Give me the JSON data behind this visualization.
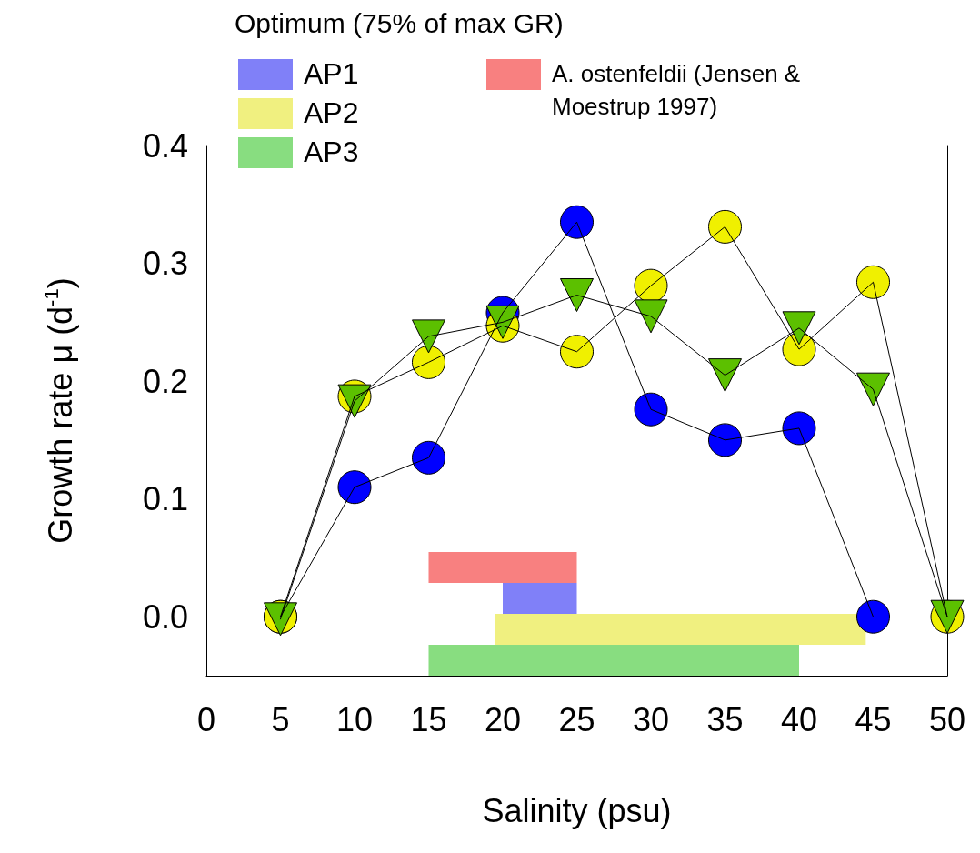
{
  "chart_data": {
    "type": "line",
    "xlabel": "Salinity (psu)",
    "ylabel": "Growth rate μ (d$^{-1}$)",
    "legend_title": "Optimum (75% of max GR)",
    "legend": "top left",
    "grid": false,
    "x": [
      5,
      10,
      15,
      20,
      25,
      30,
      35,
      40,
      45,
      50
    ],
    "xlim": [
      0,
      50
    ],
    "xticks": [
      0,
      5,
      10,
      15,
      20,
      25,
      30,
      35,
      40,
      45,
      50
    ],
    "ylim": [
      -0.05,
      0.4
    ],
    "yticks": [
      {
        "value": 0,
        "label": "0.0"
      },
      {
        "value": 0.1,
        "label": "0.1"
      },
      {
        "value": 0.2,
        "label": "0.2"
      },
      {
        "value": 0.3,
        "label": "0.3"
      },
      {
        "value": 0.4,
        "label": "0.4"
      }
    ],
    "series": [
      {
        "color": "#0000ff",
        "marker": "circle",
        "values": [
          0,
          0.11,
          0.135,
          0.258,
          0.335,
          0.176,
          0.15,
          0.16,
          0,
          null
        ]
      },
      {
        "color": "#f0f000",
        "marker": "circle",
        "values": [
          0,
          0.187,
          0.216,
          0.247,
          0.225,
          0.281,
          0.331,
          0.227,
          0.284,
          0
        ]
      },
      {
        "color": "#5cc000",
        "marker": "triangle",
        "values": [
          -0.002,
          0.183,
          0.238,
          0.25,
          0.273,
          0.255,
          0.205,
          0.245,
          0.193,
          0
        ]
      }
    ],
    "bands": [
      {
        "axis": "x",
        "from": 15,
        "to": 25,
        "label": "A. ostenfeldii (Jensen & Moestrup 1997)",
        "color": "#f88080"
      },
      {
        "axis": "x",
        "from": 20,
        "to": 25,
        "label": "AP1",
        "color": "#8080f8"
      },
      {
        "axis": "x",
        "from": 19.5,
        "to": 44.5,
        "label": "AP2",
        "color": "#f0f080"
      },
      {
        "axis": "x",
        "from": 15,
        "to": 40,
        "label": "AP3",
        "color": "#88dd80"
      }
    ]
  }
}
